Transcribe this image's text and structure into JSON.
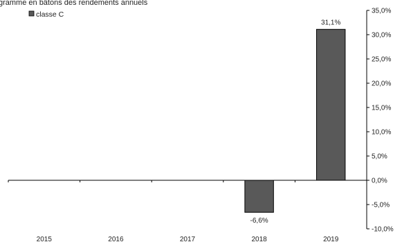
{
  "chart_data": {
    "type": "bar",
    "title": "gramme en bâtons des rendements annuels",
    "categories": [
      "2015",
      "2016",
      "2017",
      "2018",
      "2019"
    ],
    "series": [
      {
        "name": "classe C",
        "values": [
          null,
          null,
          null,
          -6.6,
          31.1
        ],
        "color": "#595959"
      }
    ],
    "data_labels": [
      "",
      "",
      "",
      "-6,6%",
      "31,1%"
    ],
    "ylim": [
      -10,
      35
    ],
    "ytick_step": 5,
    "ytick_labels": [
      "-10,0%",
      "-5,0%",
      "0,0%",
      "5,0%",
      "10,0%",
      "15,0%",
      "20,0%",
      "25,0%",
      "30,0%",
      "35,0%"
    ],
    "y_axis_side": "right",
    "grid": false,
    "legend_position": "top-left"
  }
}
